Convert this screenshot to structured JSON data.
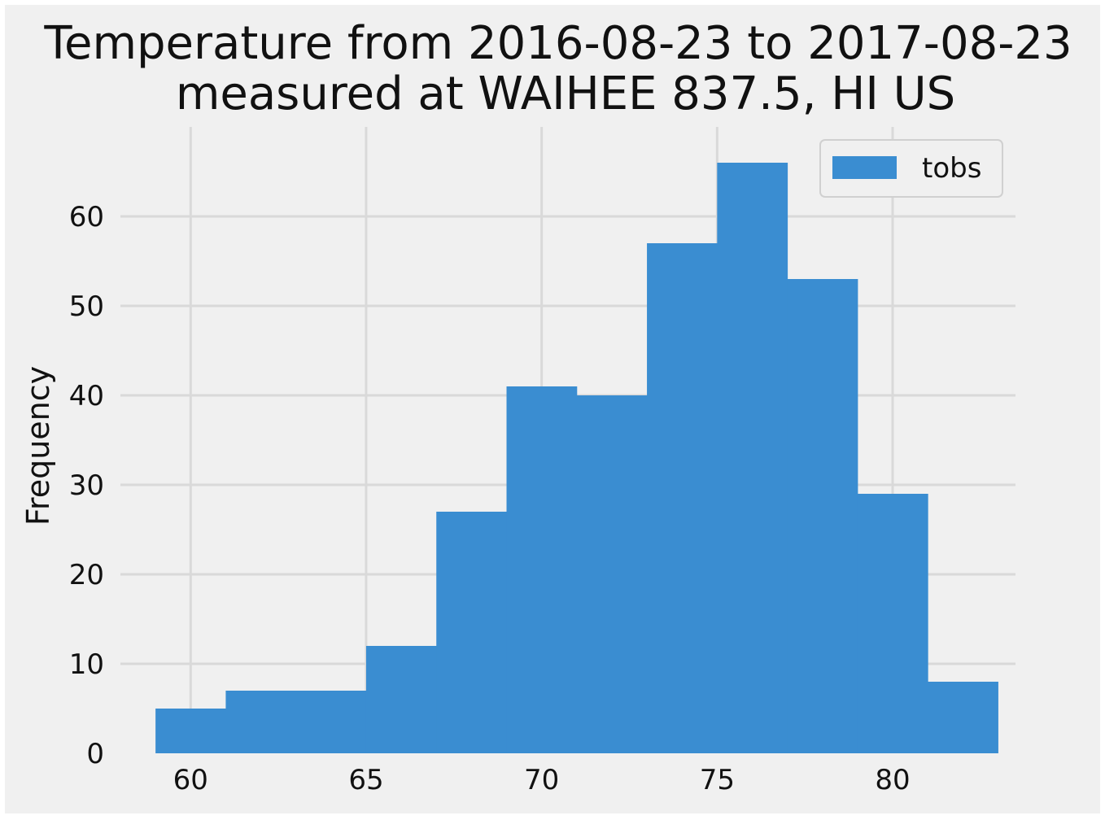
{
  "chart_data": {
    "type": "bar",
    "title_lines": [
      "Temperature from 2016-08-23 to 2017-08-23",
      "measured at WAIHEE 837.5, HI US"
    ],
    "xlabel": "",
    "ylabel": "Frequency",
    "bin_edges": [
      59,
      61,
      63,
      65,
      67,
      69,
      71,
      73,
      75,
      77,
      79,
      81,
      83
    ],
    "series": [
      {
        "name": "tobs",
        "values": [
          5,
          7,
          7,
          12,
          27,
          41,
          40,
          57,
          66,
          53,
          29,
          8
        ]
      }
    ],
    "xlim": [
      58,
      83.5
    ],
    "ylim": [
      0,
      70
    ],
    "xticks": [
      "60",
      "65",
      "70",
      "75",
      "80"
    ],
    "yticks": [
      "0",
      "10",
      "20",
      "30",
      "40",
      "50",
      "60"
    ],
    "grid": true,
    "legend_position": "top-right",
    "colors": {
      "bar": "#3a8dd1",
      "background": "#f0f0f0",
      "grid": "#d9d9d9",
      "text": "#111111"
    }
  }
}
